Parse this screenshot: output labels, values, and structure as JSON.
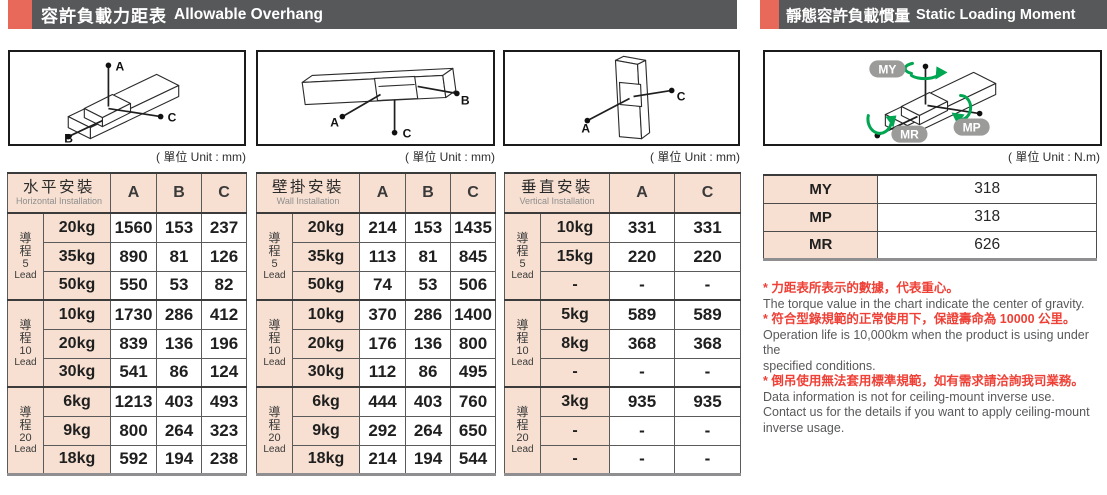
{
  "headers": {
    "overhang": {
      "zh": "容許負載力距表",
      "en": "Allowable Overhang"
    },
    "moment": {
      "zh": "靜態容許負載慣量",
      "en": "Static Loading Moment"
    }
  },
  "units": {
    "mm": "( 單位 Unit : mm)",
    "nm": "( 單位 Unit : N.m)"
  },
  "diagram_labels": {
    "a": "A",
    "b": "B",
    "c": "C",
    "my": "MY",
    "mp": "MP",
    "mr": "MR"
  },
  "overhang_tables": [
    {
      "id": "horizontal",
      "title_zh": "水平安裝",
      "title_en": "Horizontal Installation",
      "columns": [
        "A",
        "B",
        "C"
      ],
      "groups": [
        {
          "lead_chars": "導程",
          "lead_value": "5",
          "lead_word": "Lead",
          "rows": [
            [
              "20kg",
              "1560",
              "153",
              "237"
            ],
            [
              "35kg",
              "890",
              "81",
              "126"
            ],
            [
              "50kg",
              "550",
              "53",
              "82"
            ]
          ]
        },
        {
          "lead_chars": "導程",
          "lead_value": "10",
          "lead_word": "Lead",
          "rows": [
            [
              "10kg",
              "1730",
              "286",
              "412"
            ],
            [
              "20kg",
              "839",
              "136",
              "196"
            ],
            [
              "30kg",
              "541",
              "86",
              "124"
            ]
          ]
        },
        {
          "lead_chars": "導程",
          "lead_value": "20",
          "lead_word": "Lead",
          "rows": [
            [
              "6kg",
              "1213",
              "403",
              "493"
            ],
            [
              "9kg",
              "800",
              "264",
              "323"
            ],
            [
              "18kg",
              "592",
              "194",
              "238"
            ]
          ]
        }
      ]
    },
    {
      "id": "wall",
      "title_zh": "壁掛安裝",
      "title_en": "Wall Installation",
      "columns": [
        "A",
        "B",
        "C"
      ],
      "groups": [
        {
          "lead_chars": "導程",
          "lead_value": "5",
          "lead_word": "Lead",
          "rows": [
            [
              "20kg",
              "214",
              "153",
              "1435"
            ],
            [
              "35kg",
              "113",
              "81",
              "845"
            ],
            [
              "50kg",
              "74",
              "53",
              "506"
            ]
          ]
        },
        {
          "lead_chars": "導程",
          "lead_value": "10",
          "lead_word": "Lead",
          "rows": [
            [
              "10kg",
              "370",
              "286",
              "1400"
            ],
            [
              "20kg",
              "176",
              "136",
              "800"
            ],
            [
              "30kg",
              "112",
              "86",
              "495"
            ]
          ]
        },
        {
          "lead_chars": "導程",
          "lead_value": "20",
          "lead_word": "Lead",
          "rows": [
            [
              "6kg",
              "444",
              "403",
              "760"
            ],
            [
              "9kg",
              "292",
              "264",
              "650"
            ],
            [
              "18kg",
              "214",
              "194",
              "544"
            ]
          ]
        }
      ]
    },
    {
      "id": "vertical",
      "title_zh": "垂直安裝",
      "title_en": "Vertical Installation",
      "columns": [
        "A",
        "C"
      ],
      "groups": [
        {
          "lead_chars": "導程",
          "lead_value": "5",
          "lead_word": "Lead",
          "rows": [
            [
              "10kg",
              "331",
              "331"
            ],
            [
              "15kg",
              "220",
              "220"
            ],
            [
              "-",
              "-",
              "-"
            ]
          ]
        },
        {
          "lead_chars": "導程",
          "lead_value": "10",
          "lead_word": "Lead",
          "rows": [
            [
              "5kg",
              "589",
              "589"
            ],
            [
              "8kg",
              "368",
              "368"
            ],
            [
              "-",
              "-",
              "-"
            ]
          ]
        },
        {
          "lead_chars": "導程",
          "lead_value": "20",
          "lead_word": "Lead",
          "rows": [
            [
              "3kg",
              "935",
              "935"
            ],
            [
              "-",
              "-",
              "-"
            ],
            [
              "-",
              "-",
              "-"
            ]
          ]
        }
      ]
    }
  ],
  "moment_table": {
    "rows": [
      [
        "MY",
        "318"
      ],
      [
        "MP",
        "318"
      ],
      [
        "MR",
        "626"
      ]
    ]
  },
  "notes": [
    {
      "zh": "* 力距表所表示的數據，代表重心。",
      "en": [
        "The torque value in the chart indicate the center of gravity."
      ]
    },
    {
      "zh": "* 符合型錄規範的正常使用下，保證壽命為 10000 公里。",
      "en": [
        "Operation life is 10,000km when the product is using under the",
        "specified conditions."
      ]
    },
    {
      "zh": "* 倒吊使用無法套用標準規範，如有需求請洽詢我司業務。",
      "en": [
        "Data information is not for ceiling-mount inverse use.",
        "Contact us for the details if you want to apply ceiling-mount",
        "inverse usage."
      ]
    }
  ],
  "colors": {
    "accent_red": "#e8695a",
    "header_bar_gray": "#57585a",
    "cell_pink": "#f7e0d1",
    "note_red": "#ee4036",
    "rotation_arrow_green": "#00a651"
  }
}
